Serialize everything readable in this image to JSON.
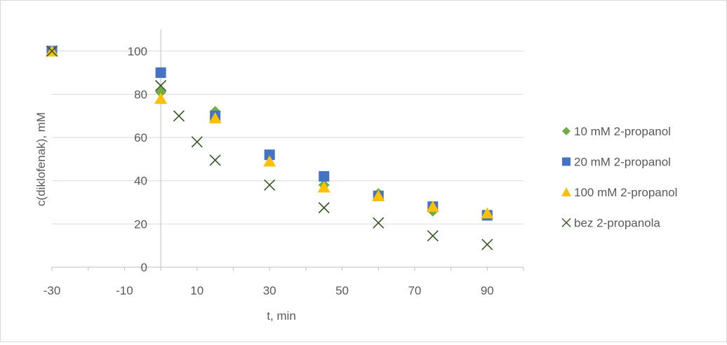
{
  "chart_data": {
    "type": "scatter",
    "title": "",
    "xlabel": "t, min",
    "ylabel": "c(diklofenak), mM",
    "xlim": [
      -30,
      100
    ],
    "ylim": [
      0,
      110
    ],
    "x_ticks": [
      -30,
      -10,
      10,
      30,
      50,
      70,
      90
    ],
    "x_tick_labels": [
      "-30",
      "-10",
      "10",
      "30",
      "50",
      "70",
      "90"
    ],
    "y_ticks": [
      0,
      20,
      40,
      60,
      80,
      100
    ],
    "y_tick_labels": [
      "0",
      "20",
      "40",
      "60",
      "80",
      "100"
    ],
    "grid": "horizontal",
    "legend_position": "right",
    "series": [
      {
        "name": "10 mM 2-propanol",
        "marker": "diamond",
        "color": "#70ad47",
        "points": [
          [
            -30,
            100
          ],
          [
            0,
            81
          ],
          [
            15,
            72
          ],
          [
            30,
            51
          ],
          [
            45,
            38
          ],
          [
            60,
            34
          ],
          [
            75,
            26
          ],
          [
            90,
            24
          ]
        ]
      },
      {
        "name": "20 mM 2-propanol",
        "marker": "square",
        "color": "#4472c4",
        "points": [
          [
            -30,
            100
          ],
          [
            0,
            90
          ],
          [
            15,
            70
          ],
          [
            30,
            52
          ],
          [
            45,
            42
          ],
          [
            60,
            33
          ],
          [
            75,
            28
          ],
          [
            90,
            24
          ]
        ]
      },
      {
        "name": "100 mM 2-propanol",
        "marker": "triangle",
        "color": "#ffc000",
        "points": [
          [
            -30,
            100
          ],
          [
            0,
            78
          ],
          [
            15,
            69
          ],
          [
            30,
            49
          ],
          [
            45,
            37
          ],
          [
            60,
            33
          ],
          [
            75,
            28
          ],
          [
            90,
            25
          ]
        ]
      },
      {
        "name": "bez 2-propanola",
        "marker": "x",
        "color": "#375623",
        "points": [
          [
            -30,
            100
          ],
          [
            0,
            84
          ],
          [
            5,
            70
          ],
          [
            10,
            58
          ],
          [
            15,
            49.5
          ],
          [
            30,
            38
          ],
          [
            45,
            27.5
          ],
          [
            60,
            20.5
          ],
          [
            75,
            14.5
          ],
          [
            90,
            10.5
          ]
        ]
      }
    ]
  }
}
